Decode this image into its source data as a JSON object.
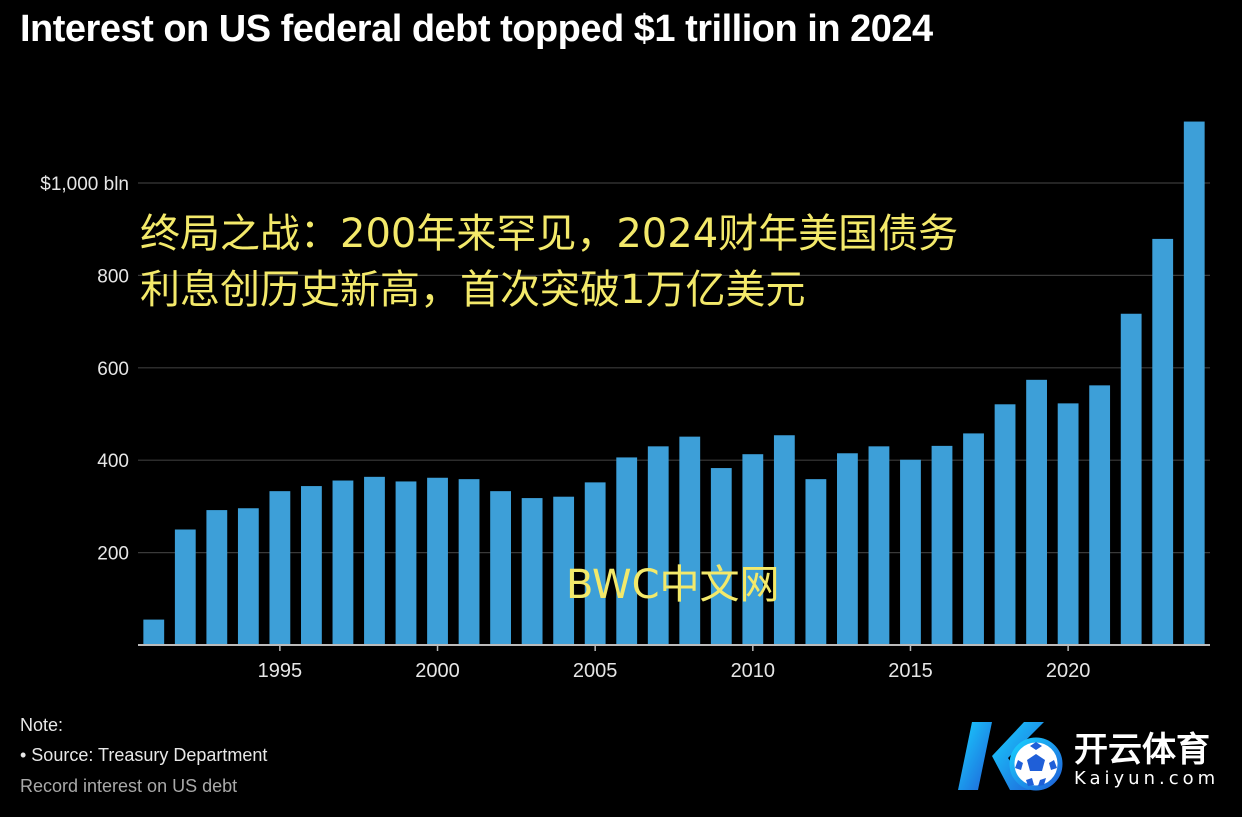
{
  "title": "Interest on US federal debt topped $1 trillion in 2024",
  "overlay_text": {
    "line1": "终局之战：200年来罕见，2024财年美国债务",
    "line2": "利息创历史新高，首次突破1万亿美元"
  },
  "watermark": "BWC中文网",
  "note": {
    "label": "Note:",
    "source": "• Source: Treasury Department"
  },
  "subnote": "Record interest on US debt",
  "logo": {
    "cn_text": "开云体育",
    "en_text": "Kaiyun.com"
  },
  "colors": {
    "background": "#000000",
    "bar": "#3d9fd8",
    "grid": "#3a3a3a",
    "axis": "#bbbbbb",
    "overlay_text": "#f3e96a"
  },
  "chart_data": {
    "type": "bar",
    "x": [
      1991,
      1992,
      1993,
      1994,
      1995,
      1996,
      1997,
      1998,
      1999,
      2000,
      2001,
      2002,
      2003,
      2004,
      2005,
      2006,
      2007,
      2008,
      2009,
      2010,
      2011,
      2012,
      2013,
      2014,
      2015,
      2016,
      2017,
      2018,
      2019,
      2020,
      2021,
      2022,
      2023,
      2024
    ],
    "values": [
      55,
      250,
      292,
      296,
      333,
      344,
      356,
      364,
      354,
      362,
      359,
      333,
      318,
      321,
      352,
      406,
      430,
      451,
      383,
      413,
      454,
      359,
      415,
      430,
      401,
      431,
      458,
      521,
      574,
      523,
      562,
      717,
      879,
      1133
    ],
    "x_ticks": [
      1995,
      2000,
      2005,
      2010,
      2015,
      2020
    ],
    "y_ticks": [
      {
        "value": 200,
        "label": "200"
      },
      {
        "value": 400,
        "label": "400"
      },
      {
        "value": 600,
        "label": "600"
      },
      {
        "value": 800,
        "label": "800"
      },
      {
        "value": 1000,
        "label": "$1,000 bln"
      }
    ],
    "ylim": [
      0,
      1200
    ],
    "xlim": [
      1990.5,
      2024.5
    ],
    "grid": true
  }
}
